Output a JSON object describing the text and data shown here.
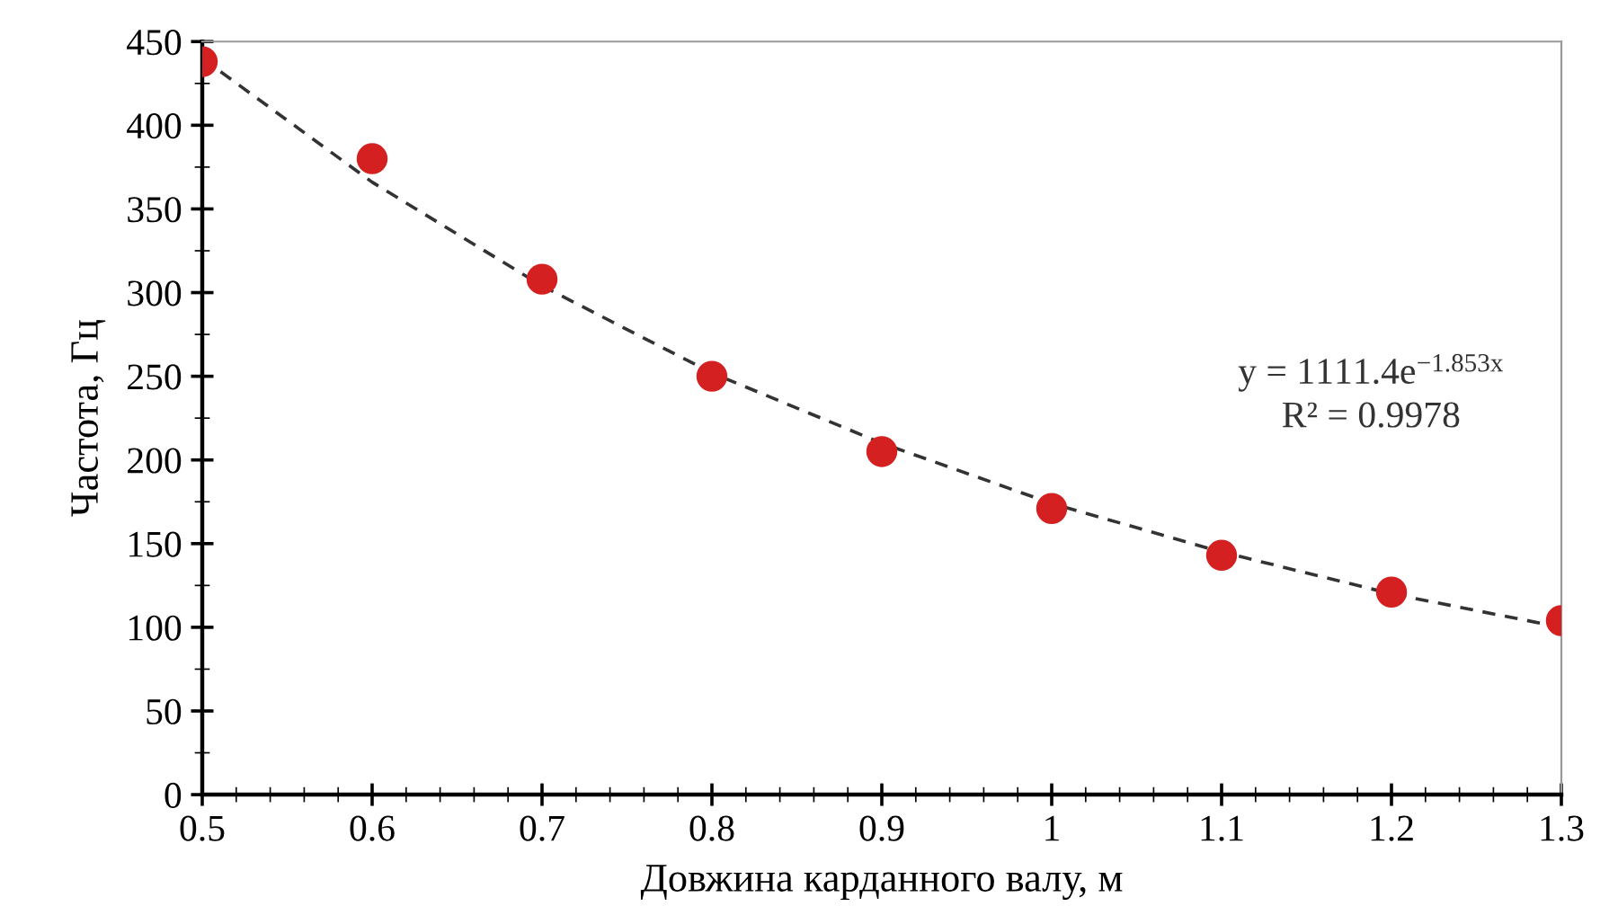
{
  "chart_data": {
    "type": "scatter",
    "xlabel": "Довжина карданного валу, м",
    "ylabel": "Частота, Гц",
    "x": [
      0.5,
      0.6,
      0.7,
      0.8,
      0.9,
      1,
      1.1,
      1.2,
      1.3
    ],
    "series": [
      {
        "color": "#d42020",
        "marker": "circle",
        "values": [
          438,
          380,
          308,
          250,
          205,
          171,
          143,
          121,
          104
        ]
      },
      {
        "type": "line",
        "color": "#333333",
        "line_style": "dashed",
        "marker": "none",
        "x": [
          0.5,
          0.6,
          0.7,
          0.8,
          0.9,
          1,
          1.1,
          1.2,
          1.3
        ],
        "values": [
          440,
          366,
          304,
          252,
          210,
          174,
          145,
          120,
          100
        ]
      }
    ],
    "xlim": [
      0.5,
      1.3
    ],
    "xticks": [
      0.5,
      0.6,
      0.7,
      0.8,
      0.9,
      1,
      1.1,
      1.2,
      1.3
    ],
    "ylim": [
      0,
      450
    ],
    "yticks": [
      0,
      50,
      100,
      150,
      200,
      250,
      300,
      350,
      400,
      450
    ],
    "grid": false,
    "legend": false,
    "annotations": [
      "y = 1111.4e$^{−1.853x}$",
      "R² = 0.9978"
    ]
  }
}
